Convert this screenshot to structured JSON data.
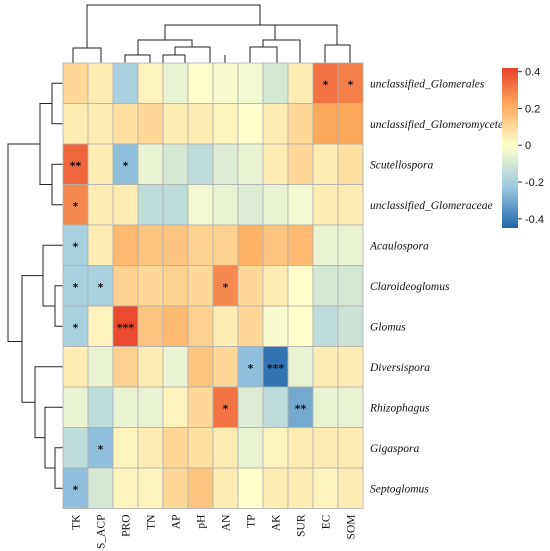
{
  "chart_data": {
    "type": "heatmap",
    "title": "",
    "rows": [
      "unclassified_Glomerales",
      "unclassified_Glomeromycetes",
      "Scutellospora",
      "unclassified_Glomeraceae",
      "Acaulospora",
      "Claroideoglomus",
      "Glomus",
      "Diversispora",
      "Rhizophagus",
      "Gigaspora",
      "Septoglomus"
    ],
    "columns": [
      "TK",
      "S_ACP",
      "PRO",
      "TN",
      "AP",
      "pH",
      "AN",
      "TP",
      "AK",
      "SUR",
      "EC",
      "SOM"
    ],
    "values": [
      [
        0.1,
        0.05,
        -0.2,
        0.03,
        -0.05,
        0.0,
        -0.02,
        -0.03,
        -0.1,
        0.05,
        0.32,
        0.3
      ],
      [
        0.05,
        0.05,
        0.08,
        0.1,
        0.05,
        0.05,
        0.03,
        0.0,
        0.05,
        0.1,
        0.22,
        0.22
      ],
      [
        0.35,
        0.05,
        -0.25,
        -0.05,
        -0.1,
        -0.15,
        -0.08,
        -0.05,
        0.05,
        0.1,
        0.05,
        0.08
      ],
      [
        0.28,
        0.05,
        0.05,
        -0.15,
        -0.15,
        -0.03,
        -0.05,
        -0.08,
        -0.05,
        -0.03,
        0.05,
        0.05
      ],
      [
        -0.2,
        0.05,
        0.18,
        0.15,
        0.15,
        0.12,
        0.12,
        0.2,
        0.15,
        0.18,
        -0.05,
        -0.05
      ],
      [
        -0.2,
        -0.2,
        0.12,
        0.1,
        0.12,
        0.1,
        0.28,
        0.1,
        0.05,
        0.0,
        -0.1,
        -0.1
      ],
      [
        -0.2,
        0.03,
        0.4,
        0.15,
        0.18,
        0.12,
        0.05,
        0.1,
        -0.02,
        0.0,
        -0.15,
        -0.12
      ],
      [
        0.05,
        -0.05,
        0.12,
        0.05,
        -0.05,
        0.15,
        0.1,
        -0.25,
        -0.42,
        -0.05,
        0.05,
        0.05
      ],
      [
        -0.05,
        -0.15,
        -0.05,
        -0.05,
        0.03,
        0.1,
        0.32,
        -0.08,
        -0.15,
        -0.3,
        -0.05,
        -0.05
      ],
      [
        -0.15,
        -0.25,
        0.03,
        0.05,
        0.1,
        0.08,
        0.05,
        -0.05,
        0.03,
        0.05,
        0.05,
        0.05
      ],
      [
        -0.25,
        -0.1,
        0.03,
        0.03,
        0.1,
        0.15,
        0.05,
        0.0,
        0.05,
        0.05,
        0.03,
        0.05
      ]
    ],
    "significance": [
      [
        "",
        "",
        "",
        "",
        "",
        "",
        "",
        "",
        "",
        "",
        "*",
        "*"
      ],
      [
        "",
        "",
        "",
        "",
        "",
        "",
        "",
        "",
        "",
        "",
        "",
        ""
      ],
      [
        "**",
        "",
        "*",
        "",
        "",
        "",
        "",
        "",
        "",
        "",
        "",
        ""
      ],
      [
        "*",
        "",
        "",
        "",
        "",
        "",
        "",
        "",
        "",
        "",
        "",
        ""
      ],
      [
        "*",
        "",
        "",
        "",
        "",
        "",
        "",
        "",
        "",
        "",
        "",
        ""
      ],
      [
        "*",
        "*",
        "",
        "",
        "",
        "",
        "*",
        "",
        "",
        "",
        "",
        ""
      ],
      [
        "*",
        "",
        "***",
        "",
        "",
        "",
        "",
        "",
        "",
        "",
        "",
        ""
      ],
      [
        "",
        "",
        "",
        "",
        "",
        "",
        "",
        "*",
        "***",
        "",
        "",
        ""
      ],
      [
        "",
        "",
        "",
        "",
        "",
        "",
        "*",
        "",
        "",
        "**",
        "",
        ""
      ],
      [
        "",
        "*",
        "",
        "",
        "",
        "",
        "",
        "",
        "",
        "",
        "",
        ""
      ],
      [
        "*",
        "",
        "",
        "",
        "",
        "",
        "",
        "",
        "",
        "",
        "",
        ""
      ]
    ],
    "color_scale": {
      "min": -0.45,
      "max": 0.42,
      "ticks": [
        "0.4",
        "0.2",
        "0",
        "-0.2",
        "-0.4"
      ],
      "tick_values": [
        0.4,
        0.2,
        0,
        -0.2,
        -0.4
      ],
      "stops": [
        {
          "value": -0.45,
          "color": "#2166ac"
        },
        {
          "value": -0.225,
          "color": "#9ecae1"
        },
        {
          "value": 0.0,
          "color": "#ffffcc"
        },
        {
          "value": 0.21,
          "color": "#fdae61"
        },
        {
          "value": 0.42,
          "color": "#e8402a"
        }
      ]
    },
    "legend_placement": "right",
    "row_dendrogram": "left",
    "column_dendrogram": "top",
    "grid": true
  }
}
